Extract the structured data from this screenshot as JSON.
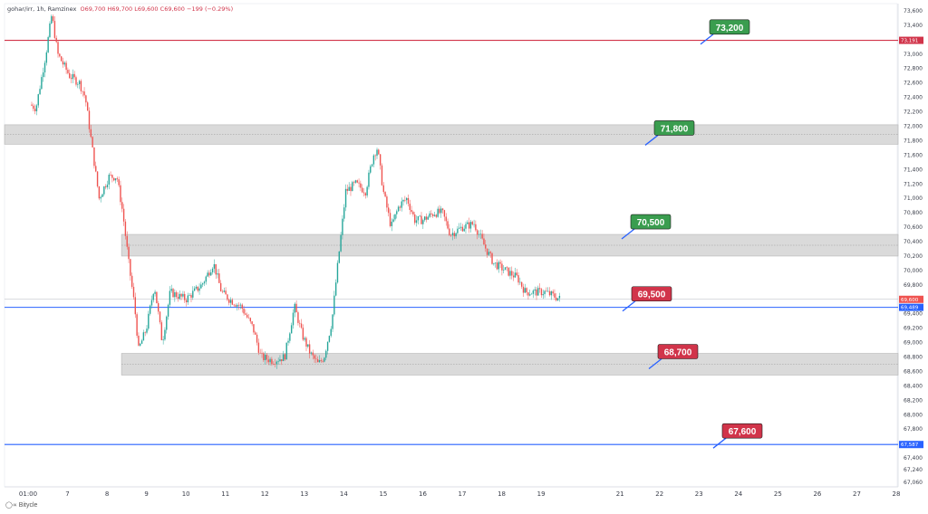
{
  "header": {
    "symbol": "gohar/irr, 1h, Ramzinex",
    "open": "O69,700",
    "high": "H69,700",
    "low": "L69,600",
    "close": "C69,600",
    "change": "−199 (−0.29%)"
  },
  "watermark": "Bitycle",
  "colors": {
    "up": "#26a69a",
    "down": "#ef5350",
    "zone": "#d3d3d3",
    "resistance_line": "#d1344a",
    "support_line": "#2962ff",
    "label_green": "#3a9d4f",
    "label_red": "#d1344a",
    "price_tag_gray": "#9598a1"
  },
  "chart_data": {
    "type": "candlestick",
    "y_axis_ticks": [
      "73,600",
      "73,400",
      "73,200",
      "73,000",
      "72,800",
      "72,600",
      "72,400",
      "72,200",
      "72,000",
      "71,800",
      "71,600",
      "71,400",
      "71,200",
      "71,000",
      "70,800",
      "70,600",
      "70,400",
      "70,200",
      "70,000",
      "69,800",
      "69,600",
      "69,400",
      "69,200",
      "69,000",
      "68,800",
      "68,600",
      "68,400",
      "68,200",
      "68,000",
      "67,800",
      "67,600",
      "67,400",
      "67,240",
      "67,060"
    ],
    "ylim": [
      67000,
      73700
    ],
    "x_axis_ticks": [
      "01:00",
      "7",
      "8",
      "9",
      "10",
      "11",
      "12",
      "13",
      "14",
      "15",
      "16",
      "17",
      "18",
      "19",
      "21",
      "22",
      "23",
      "24",
      "25",
      "26",
      "27",
      "28"
    ],
    "zones": [
      {
        "low": 71750,
        "high": 72020,
        "start": "6"
      },
      {
        "low": 70200,
        "high": 70500,
        "start": "8"
      },
      {
        "low": 68550,
        "high": 68850,
        "start": "8"
      }
    ],
    "horizontal_lines": [
      {
        "value": 73191,
        "label": "73,191",
        "color": "#d1344a"
      },
      {
        "value": 69489,
        "label": "69,489",
        "color": "#2962ff"
      },
      {
        "value": 67587,
        "label": "67,587",
        "color": "#2962ff"
      }
    ],
    "current_price": {
      "value": 69600,
      "label": "69,600"
    },
    "level_labels": [
      {
        "text": "73,200",
        "value": 73200,
        "color": "green"
      },
      {
        "text": "71,800",
        "value": 71800,
        "color": "green"
      },
      {
        "text": "70,500",
        "value": 70500,
        "color": "green"
      },
      {
        "text": "69,500",
        "value": 69500,
        "color": "red"
      },
      {
        "text": "68,700",
        "value": 68700,
        "color": "red"
      },
      {
        "text": "67,600",
        "value": 67600,
        "color": "red"
      }
    ],
    "price_path": [
      {
        "day": 6.05,
        "price": 72300
      },
      {
        "day": 6.2,
        "price": 72250
      },
      {
        "day": 6.45,
        "price": 73000
      },
      {
        "day": 6.6,
        "price": 73550
      },
      {
        "day": 6.75,
        "price": 73000
      },
      {
        "day": 7.05,
        "price": 72700
      },
      {
        "day": 7.3,
        "price": 72600
      },
      {
        "day": 7.45,
        "price": 72400
      },
      {
        "day": 7.65,
        "price": 71600
      },
      {
        "day": 7.8,
        "price": 71000
      },
      {
        "day": 8.05,
        "price": 71300
      },
      {
        "day": 8.25,
        "price": 71300
      },
      {
        "day": 8.4,
        "price": 70800
      },
      {
        "day": 8.55,
        "price": 70100
      },
      {
        "day": 8.7,
        "price": 69500
      },
      {
        "day": 8.8,
        "price": 68900
      },
      {
        "day": 9.0,
        "price": 69200
      },
      {
        "day": 9.2,
        "price": 69800
      },
      {
        "day": 9.4,
        "price": 69000
      },
      {
        "day": 9.6,
        "price": 69700
      },
      {
        "day": 10.0,
        "price": 69600
      },
      {
        "day": 10.4,
        "price": 69800
      },
      {
        "day": 10.7,
        "price": 70100
      },
      {
        "day": 10.9,
        "price": 69700
      },
      {
        "day": 11.1,
        "price": 69600
      },
      {
        "day": 11.4,
        "price": 69500
      },
      {
        "day": 11.7,
        "price": 69200
      },
      {
        "day": 11.9,
        "price": 68800
      },
      {
        "day": 12.2,
        "price": 68750
      },
      {
        "day": 12.5,
        "price": 68800
      },
      {
        "day": 12.75,
        "price": 69500
      },
      {
        "day": 12.95,
        "price": 69100
      },
      {
        "day": 13.15,
        "price": 68850
      },
      {
        "day": 13.35,
        "price": 68700
      },
      {
        "day": 13.5,
        "price": 68800
      },
      {
        "day": 13.7,
        "price": 69300
      },
      {
        "day": 13.85,
        "price": 70100
      },
      {
        "day": 14.05,
        "price": 71100
      },
      {
        "day": 14.3,
        "price": 71200
      },
      {
        "day": 14.55,
        "price": 71100
      },
      {
        "day": 14.75,
        "price": 71600
      },
      {
        "day": 14.85,
        "price": 71700
      },
      {
        "day": 15.0,
        "price": 71100
      },
      {
        "day": 15.2,
        "price": 70600
      },
      {
        "day": 15.4,
        "price": 70900
      },
      {
        "day": 15.6,
        "price": 71000
      },
      {
        "day": 15.8,
        "price": 70700
      },
      {
        "day": 16.0,
        "price": 70700
      },
      {
        "day": 16.3,
        "price": 70800
      },
      {
        "day": 16.5,
        "price": 70800
      },
      {
        "day": 16.7,
        "price": 70500
      },
      {
        "day": 17.0,
        "price": 70600
      },
      {
        "day": 17.3,
        "price": 70650
      },
      {
        "day": 17.6,
        "price": 70300
      },
      {
        "day": 17.8,
        "price": 70100
      },
      {
        "day": 18.1,
        "price": 70000
      },
      {
        "day": 18.4,
        "price": 69900
      },
      {
        "day": 18.6,
        "price": 69700
      },
      {
        "day": 18.8,
        "price": 69700
      },
      {
        "day": 19.1,
        "price": 69700
      },
      {
        "day": 19.3,
        "price": 69650
      },
      {
        "day": 19.5,
        "price": 69600
      }
    ]
  }
}
